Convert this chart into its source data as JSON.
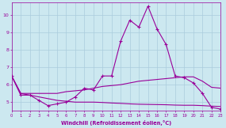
{
  "xlabel": "Windchill (Refroidissement éolien,°C)",
  "hours": [
    0,
    1,
    2,
    3,
    4,
    5,
    6,
    7,
    8,
    9,
    10,
    11,
    12,
    13,
    14,
    15,
    16,
    17,
    18,
    19,
    20,
    21,
    22,
    23
  ],
  "main_y": [
    6.5,
    5.4,
    5.4,
    5.1,
    4.8,
    4.9,
    5.0,
    5.3,
    5.8,
    5.7,
    6.5,
    6.5,
    8.5,
    9.7,
    9.3,
    10.5,
    9.2,
    8.3,
    6.5,
    6.4,
    6.1,
    5.5,
    4.7,
    4.6
  ],
  "upper_y": [
    6.5,
    5.5,
    5.5,
    5.5,
    5.5,
    5.5,
    5.6,
    5.65,
    5.7,
    5.8,
    5.9,
    5.95,
    6.0,
    6.1,
    6.2,
    6.25,
    6.3,
    6.35,
    6.4,
    6.45,
    6.45,
    6.2,
    5.85,
    5.8
  ],
  "lower_y": [
    6.5,
    5.5,
    5.4,
    5.3,
    5.2,
    5.1,
    5.05,
    5.0,
    5.0,
    5.0,
    4.98,
    4.95,
    4.93,
    4.9,
    4.88,
    4.87,
    4.86,
    4.85,
    4.83,
    4.82,
    4.82,
    4.8,
    4.77,
    4.75
  ],
  "line_color": "#990099",
  "bg_color": "#cce8f0",
  "grid_color": "#aaccdd",
  "ylim": [
    4.5,
    10.7
  ],
  "yticks": [
    5,
    6,
    7,
    8,
    9,
    10
  ]
}
